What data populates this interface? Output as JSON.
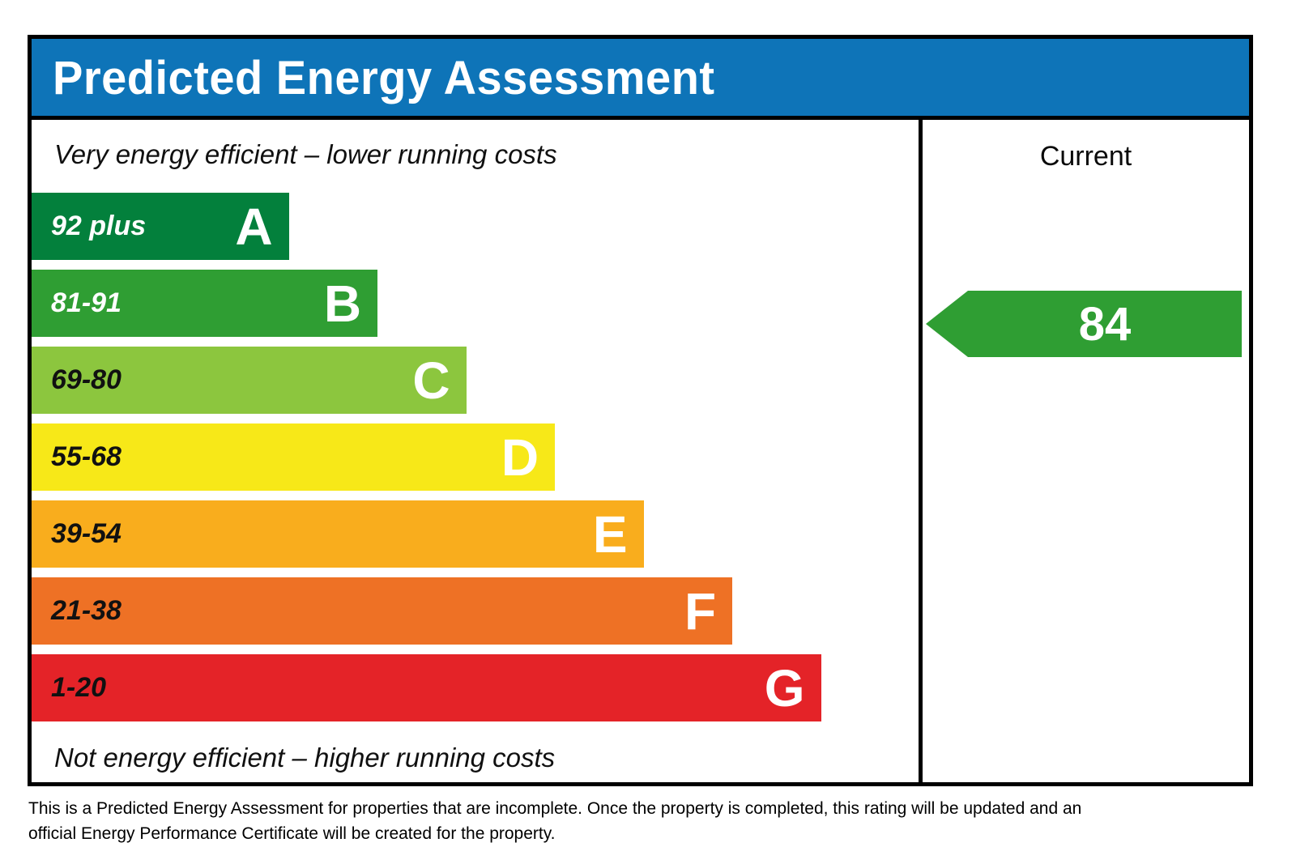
{
  "header": {
    "title": "Predicted Energy Assessment",
    "bg_color": "#0e74b8"
  },
  "panel": {
    "top_note": "Very energy efficient – lower running costs",
    "bottom_note": "Not energy efficient – higher running costs",
    "current_column_label": "Current"
  },
  "chart_data": {
    "type": "bar",
    "title": "Predicted Energy Assessment",
    "categories": [
      "A",
      "B",
      "C",
      "D",
      "E",
      "F",
      "G"
    ],
    "bands": [
      {
        "letter": "A",
        "range": "92 plus",
        "min": 92,
        "max": 100,
        "color": "#03803c",
        "text_color": "#ffffff",
        "width_pct": 29
      },
      {
        "letter": "B",
        "range": "81-91",
        "min": 81,
        "max": 91,
        "color": "#2f9e33",
        "text_color": "#ffffff",
        "width_pct": 39
      },
      {
        "letter": "C",
        "range": "69-80",
        "min": 69,
        "max": 80,
        "color": "#8cc63e",
        "text_color": "#111111",
        "width_pct": 49
      },
      {
        "letter": "D",
        "range": "55-68",
        "min": 55,
        "max": 68,
        "color": "#f7e818",
        "text_color": "#111111",
        "width_pct": 59
      },
      {
        "letter": "E",
        "range": "39-54",
        "min": 39,
        "max": 54,
        "color": "#f9ad1d",
        "text_color": "#111111",
        "width_pct": 69
      },
      {
        "letter": "F",
        "range": "21-38",
        "min": 21,
        "max": 38,
        "color": "#ee7125",
        "text_color": "#111111",
        "width_pct": 79
      },
      {
        "letter": "G",
        "range": "1-20",
        "min": 1,
        "max": 20,
        "color": "#e42328",
        "text_color": "#111111",
        "width_pct": 89
      }
    ],
    "current": {
      "value": 84,
      "band": "B",
      "arrow_color": "#2f9e33"
    },
    "legend_position": "right",
    "grid": false
  },
  "footer": {
    "line1": "This is a Predicted Energy Assessment for properties that are incomplete. Once the property is completed, this rating will be updated and an",
    "line2": "official Energy Performance Certificate will be created for the property."
  }
}
